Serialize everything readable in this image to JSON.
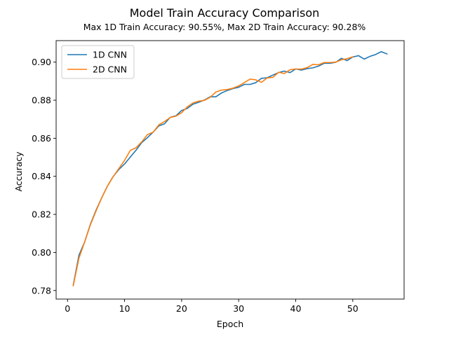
{
  "chart_data": {
    "type": "line",
    "title": "Model Train Accuracy Comparison",
    "subtitle": "Max 1D Train Accuracy: 90.55%, Max 2D Train Accuracy: 90.28%",
    "xlabel": "Epoch",
    "ylabel": "Accuracy",
    "xlim": [
      -2,
      59
    ],
    "ylim": [
      0.7755,
      0.9113
    ],
    "xticks": [
      0,
      10,
      20,
      30,
      40,
      50
    ],
    "yticks": [
      0.78,
      0.8,
      0.82,
      0.84,
      0.86,
      0.88,
      0.9
    ],
    "ytick_labels": [
      "0.78",
      "0.80",
      "0.82",
      "0.84",
      "0.86",
      "0.88",
      "0.90"
    ],
    "grid": false,
    "legend_position": "upper-left",
    "series": [
      {
        "name": "1D CNN",
        "color": "#1f77b4",
        "x": [
          1,
          2,
          3,
          4,
          5,
          6,
          7,
          8,
          9,
          10,
          11,
          12,
          13,
          14,
          15,
          16,
          17,
          18,
          19,
          20,
          21,
          22,
          23,
          24,
          25,
          26,
          27,
          28,
          29,
          30,
          31,
          32,
          33,
          34,
          35,
          36,
          37,
          38,
          39,
          40,
          41,
          42,
          43,
          44,
          45,
          46,
          47,
          48,
          49,
          50,
          51,
          52,
          53,
          54,
          55,
          56
        ],
        "values": [
          0.7828,
          0.7985,
          0.8055,
          0.8148,
          0.8222,
          0.8288,
          0.8349,
          0.8399,
          0.8436,
          0.8465,
          0.8501,
          0.8537,
          0.8577,
          0.8603,
          0.8632,
          0.8665,
          0.8676,
          0.871,
          0.8718,
          0.8746,
          0.8757,
          0.8779,
          0.8789,
          0.8801,
          0.8818,
          0.8818,
          0.8838,
          0.8851,
          0.8861,
          0.8868,
          0.8883,
          0.8883,
          0.8892,
          0.8915,
          0.8918,
          0.8932,
          0.8945,
          0.8953,
          0.8945,
          0.8964,
          0.8958,
          0.8966,
          0.897,
          0.8979,
          0.8994,
          0.8994,
          0.8999,
          0.902,
          0.9008,
          0.9027,
          0.9034,
          0.9016,
          0.903,
          0.904,
          0.9055,
          0.9043
        ]
      },
      {
        "name": "2D CNN",
        "color": "#ff7f0e",
        "x": [
          1,
          2,
          3,
          4,
          5,
          6,
          7,
          8,
          9,
          10,
          11,
          12,
          13,
          14,
          15,
          16,
          17,
          18,
          19,
          20,
          21,
          22,
          23,
          24,
          25,
          26,
          27,
          28,
          29,
          30,
          31,
          32,
          33,
          34,
          35,
          36,
          37,
          38,
          39,
          40,
          41,
          42,
          43,
          44,
          45,
          46,
          47,
          48,
          49,
          50
        ],
        "values": [
          0.7825,
          0.797,
          0.8055,
          0.8145,
          0.8218,
          0.8288,
          0.8349,
          0.8398,
          0.8441,
          0.8484,
          0.8536,
          0.855,
          0.8581,
          0.8619,
          0.8632,
          0.867,
          0.8688,
          0.8709,
          0.8716,
          0.8734,
          0.8765,
          0.8786,
          0.8795,
          0.8799,
          0.8815,
          0.8843,
          0.8853,
          0.8856,
          0.8863,
          0.8875,
          0.8893,
          0.8911,
          0.8907,
          0.8894,
          0.8917,
          0.892,
          0.8947,
          0.894,
          0.896,
          0.8964,
          0.8963,
          0.8971,
          0.8988,
          0.8986,
          0.8998,
          0.8998,
          0.9,
          0.9012,
          0.9018,
          0.9028
        ]
      }
    ]
  }
}
